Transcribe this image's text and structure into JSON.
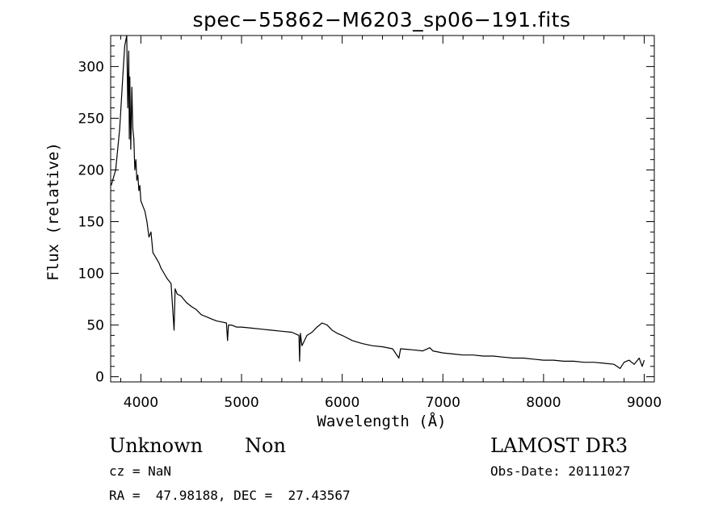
{
  "chart_data": {
    "type": "line",
    "title": "spec−55862−M6203_sp06−191.fits",
    "xlabel": "Wavelength (Å)",
    "ylabel": "Flux (relative)",
    "xlim": [
      3700,
      9100
    ],
    "ylim": [
      -5,
      330
    ],
    "x_ticks": [
      4000,
      5000,
      6000,
      7000,
      8000,
      9000
    ],
    "x_tick_labels": [
      "4000",
      "5000",
      "6000",
      "7000",
      "8000",
      "9000"
    ],
    "y_ticks": [
      0,
      50,
      100,
      150,
      200,
      250,
      300
    ],
    "y_tick_labels": [
      "0",
      "50",
      "100",
      "150",
      "200",
      "250",
      "300"
    ],
    "grid": false,
    "legend": "none",
    "series": [
      {
        "x": [
          3705,
          3750,
          3790,
          3820,
          3840,
          3860,
          3870,
          3880,
          3885,
          3890,
          3900,
          3910,
          3920,
          3930,
          3940,
          3950,
          3960,
          3970,
          3980,
          3990,
          4000,
          4020,
          4040,
          4060,
          4080,
          4100,
          4120,
          4150,
          4180,
          4200,
          4230,
          4260,
          4300,
          4330,
          4340,
          4360,
          4400,
          4450,
          4500,
          4550,
          4600,
          4650,
          4700,
          4750,
          4800,
          4850,
          4861,
          4870,
          4900,
          4950,
          5000,
          5100,
          5200,
          5300,
          5400,
          5500,
          5570,
          5577,
          5585,
          5600,
          5650,
          5700,
          5750,
          5800,
          5850,
          5890,
          5900,
          5950,
          6000,
          6100,
          6200,
          6300,
          6400,
          6500,
          6563,
          6580,
          6700,
          6800,
          6870,
          6900,
          7000,
          7100,
          7200,
          7300,
          7400,
          7500,
          7600,
          7700,
          7800,
          7900,
          8000,
          8100,
          8200,
          8300,
          8400,
          8500,
          8600,
          8700,
          8760,
          8800,
          8850,
          8900,
          8950,
          8980,
          9000
        ],
        "y": [
          185,
          200,
          240,
          290,
          320,
          330,
          260,
          315,
          230,
          290,
          220,
          280,
          240,
          230,
          200,
          210,
          190,
          195,
          180,
          185,
          170,
          165,
          160,
          150,
          135,
          140,
          120,
          115,
          110,
          105,
          100,
          95,
          90,
          45,
          85,
          80,
          78,
          72,
          68,
          65,
          60,
          58,
          56,
          54,
          53,
          52,
          35,
          50,
          50,
          48,
          48,
          47,
          46,
          45,
          44,
          43,
          40,
          15,
          42,
          30,
          40,
          43,
          48,
          52,
          50,
          46,
          45,
          42,
          40,
          35,
          32,
          30,
          29,
          27,
          18,
          27,
          26,
          25,
          28,
          25,
          23,
          22,
          21,
          21,
          20,
          20,
          19,
          18,
          18,
          17,
          16,
          16,
          15,
          15,
          14,
          14,
          13,
          12,
          8,
          14,
          16,
          12,
          18,
          10,
          16
        ]
      }
    ]
  },
  "info": {
    "class_text": "Unknown",
    "subclass_text": "Non",
    "survey_text": "LAMOST DR3",
    "cz_text": "cz = NaN",
    "obsdate_text": "Obs-Date: 20111027",
    "radec_text": "RA =  47.98188, DEC =  27.43567"
  }
}
